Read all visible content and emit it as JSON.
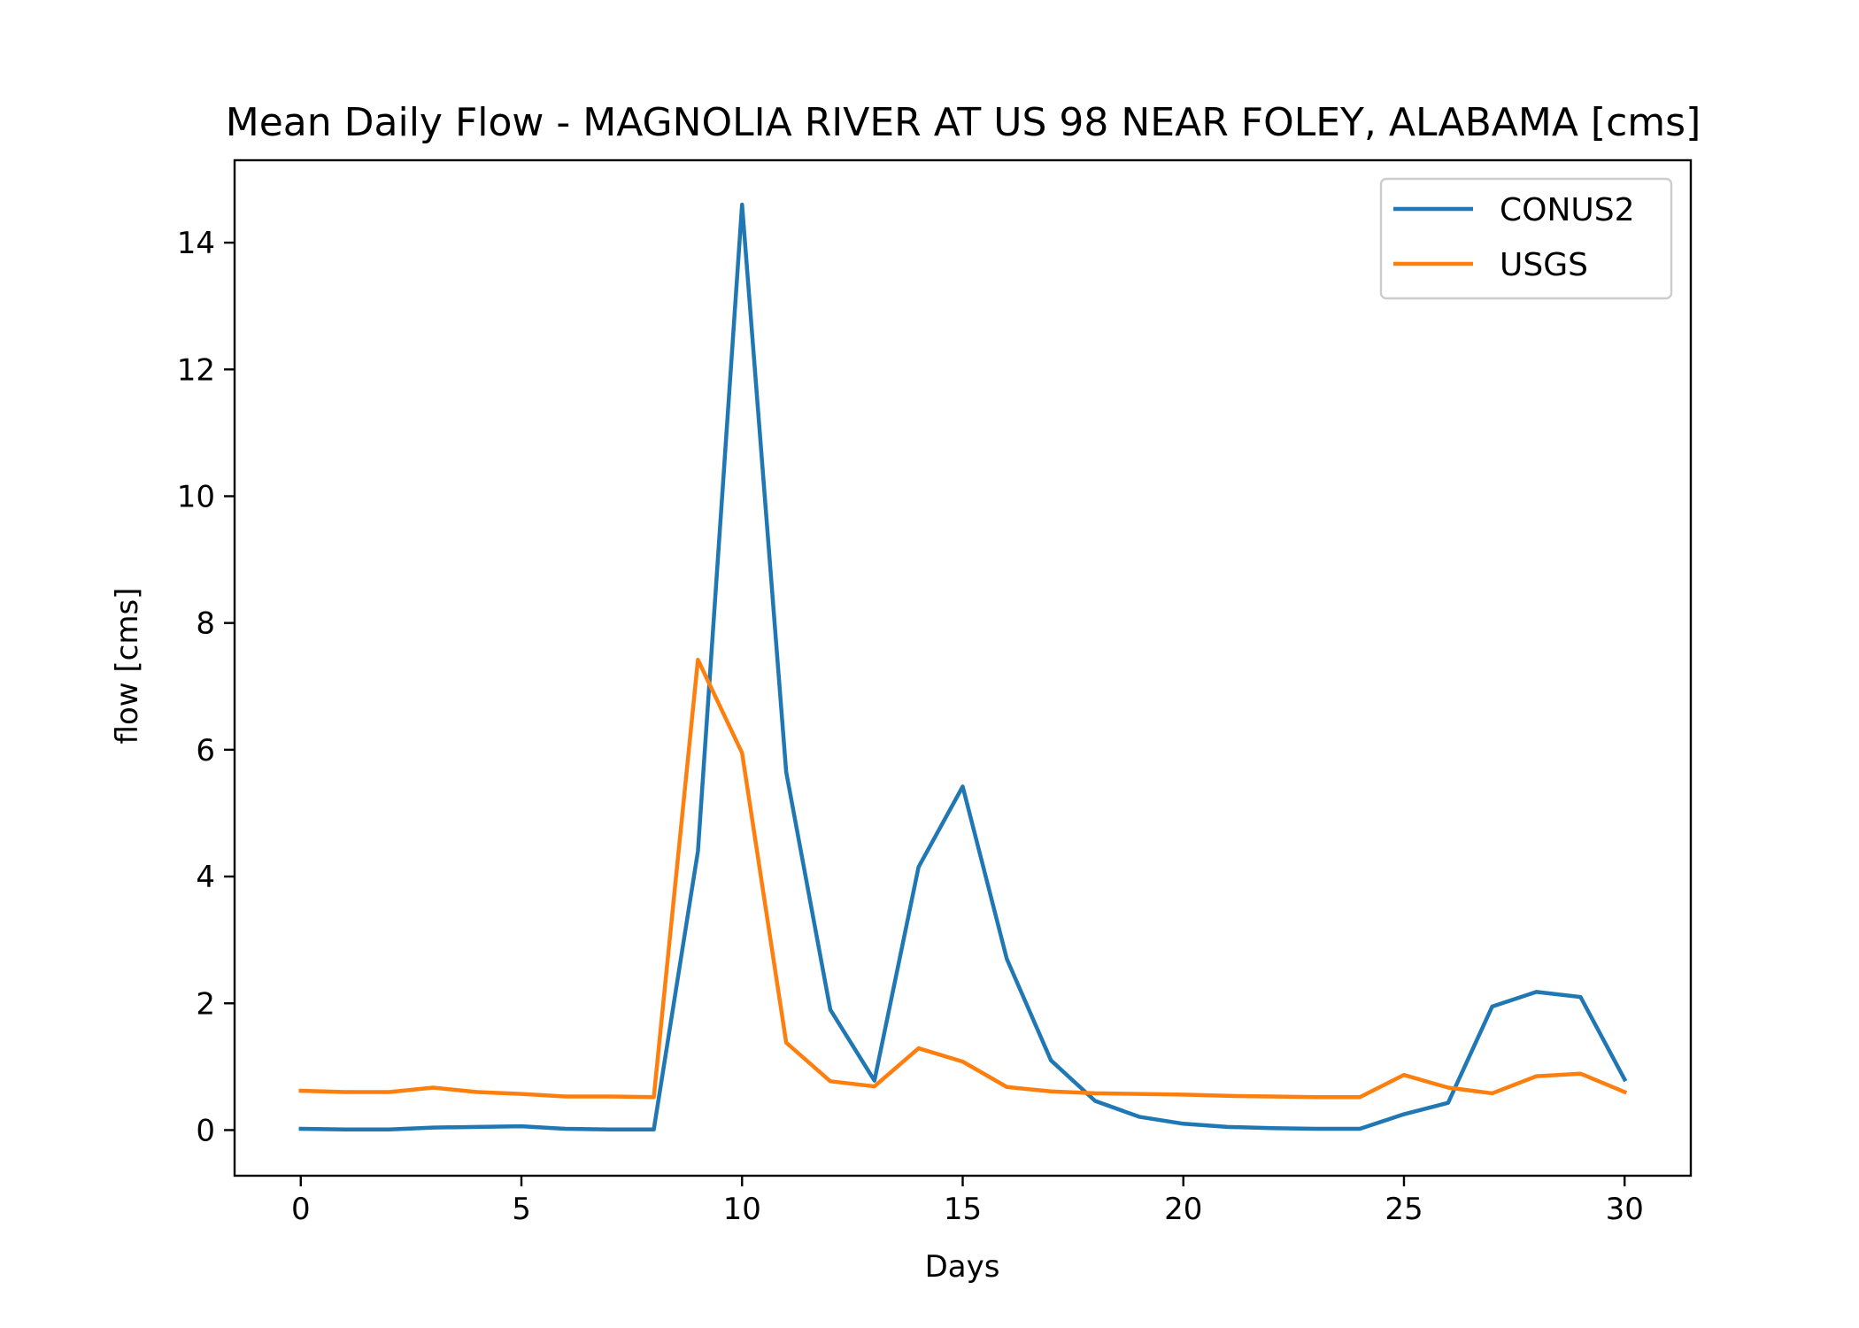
{
  "chart_data": {
    "type": "line",
    "title": "Mean Daily Flow - MAGNOLIA RIVER AT US 98 NEAR FOLEY, ALABAMA [cms]",
    "xlabel": "Days",
    "ylabel": "flow [cms]",
    "xlim": [
      -1.5,
      31.5
    ],
    "ylim": [
      -0.72,
      15.3
    ],
    "x_ticks": [
      0,
      5,
      10,
      15,
      20,
      25,
      30
    ],
    "y_ticks": [
      0,
      2,
      4,
      6,
      8,
      10,
      12,
      14
    ],
    "grid": false,
    "legend_position": "top-right",
    "x": [
      0,
      1,
      2,
      3,
      4,
      5,
      6,
      7,
      8,
      9,
      10,
      11,
      12,
      13,
      14,
      15,
      16,
      17,
      18,
      19,
      20,
      21,
      22,
      23,
      24,
      25,
      26,
      27,
      28,
      29,
      30
    ],
    "series": [
      {
        "name": "CONUS2",
        "color": "#1f77b4",
        "values": [
          0.02,
          0.01,
          0.01,
          0.04,
          0.05,
          0.06,
          0.02,
          0.01,
          0.01,
          4.4,
          14.6,
          5.65,
          1.9,
          0.78,
          4.15,
          5.42,
          2.7,
          1.1,
          0.46,
          0.21,
          0.1,
          0.05,
          0.03,
          0.02,
          0.02,
          0.25,
          0.43,
          1.95,
          2.18,
          2.1,
          0.8
        ]
      },
      {
        "name": "USGS",
        "color": "#ff7f0e",
        "values": [
          0.62,
          0.6,
          0.6,
          0.67,
          0.6,
          0.57,
          0.53,
          0.53,
          0.52,
          7.42,
          5.95,
          1.38,
          0.77,
          0.69,
          1.29,
          1.08,
          0.68,
          0.61,
          0.58,
          0.57,
          0.56,
          0.54,
          0.53,
          0.52,
          0.52,
          0.87,
          0.67,
          0.58,
          0.85,
          0.89,
          0.6
        ]
      }
    ]
  }
}
